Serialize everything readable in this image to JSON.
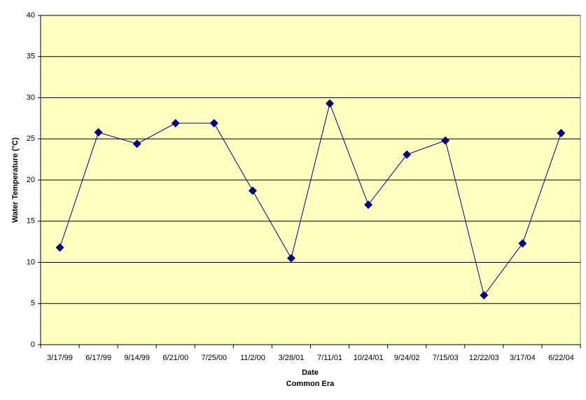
{
  "chart_data": {
    "type": "line",
    "ylabel": "Water Temperature (°C)",
    "xlabel": "Date",
    "xlabel_sub": "Common Era",
    "categories": [
      "3/17/99",
      "6/17/99",
      "9/14/99",
      "6/21/00",
      "7/25/00",
      "11/2/00",
      "3/28/01",
      "7/11/01",
      "10/24/01",
      "9/24/02",
      "7/15/03",
      "12/22/03",
      "3/17/04",
      "6/22/04"
    ],
    "series": [
      {
        "color": "#000080",
        "values": [
          11.8,
          25.8,
          24.4,
          26.9,
          26.9,
          18.7,
          10.5,
          29.3,
          17.0,
          23.1,
          24.8,
          6.0,
          12.3,
          25.7
        ]
      }
    ],
    "ylim": [
      0,
      40
    ],
    "yticks": [
      0,
      5,
      10,
      15,
      20,
      25,
      30,
      35,
      40
    ],
    "grid": true,
    "plot_background": "#ffffc0"
  }
}
